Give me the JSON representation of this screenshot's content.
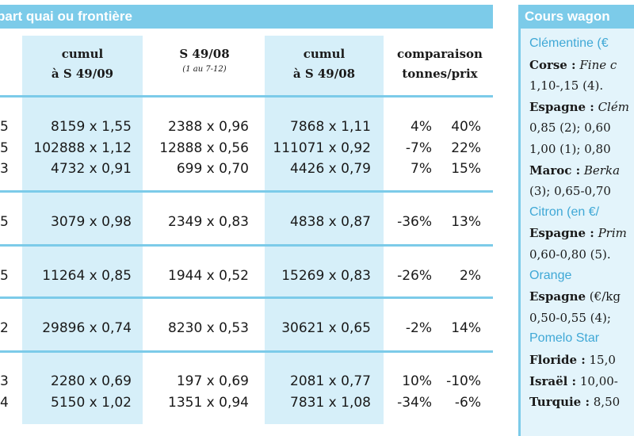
{
  "left_table": {
    "title": "part quai ou frontière",
    "columns": {
      "col1": {
        "line1": "cumul",
        "line2": "à S 49/09"
      },
      "col2": {
        "line1": "S 49/08",
        "sub": "(1 au 7-12)"
      },
      "col3": {
        "line1": "cumul",
        "line2": "à S 49/08"
      },
      "col4": {
        "line1": "comparaison",
        "line2": "tonnes/prix"
      }
    },
    "groups": [
      {
        "rows": [
          {
            "lead": "5",
            "c1": "8159 x 1,55",
            "c2": "2388 x 0,96",
            "c3": "7868 x 1,11",
            "t": "4%",
            "p": "40%"
          },
          {
            "lead": "5",
            "c1": "102888 x 1,12",
            "c2": "12888 x 0,56",
            "c3": "111071 x 0,92",
            "t": "-7%",
            "p": "22%"
          },
          {
            "lead": "3",
            "c1": "4732 x 0,91",
            "c2": "699 x 0,70",
            "c3": "4426 x 0,79",
            "t": "7%",
            "p": "15%"
          }
        ]
      },
      {
        "rows": [
          {
            "lead": "5",
            "c1": "3079 x 0,98",
            "c2": "2349 x 0,83",
            "c3": "4838 x 0,87",
            "t": "-36%",
            "p": "13%"
          }
        ]
      },
      {
        "rows": [
          {
            "lead": "5",
            "c1": "11264 x 0,85",
            "c2": "1944 x 0,52",
            "c3": "15269 x 0,83",
            "t": "-26%",
            "p": "2%"
          }
        ]
      },
      {
        "rows": [
          {
            "lead": "2",
            "c1": "29896 x 0,74",
            "c2": "8230 x 0,53",
            "c3": "30621 x 0,65",
            "t": "-2%",
            "p": "14%"
          }
        ]
      },
      {
        "rows": [
          {
            "lead": "3",
            "c1": "2280 x 0,69",
            "c2": "197 x 0,69",
            "c3": "2081 x 0,77",
            "t": "10%",
            "p": "-10%"
          },
          {
            "lead": "4",
            "c1": "5150 x 1,02",
            "c2": "1351 x 0,94",
            "c3": "7831 x 1,08",
            "t": "-34%",
            "p": "-6%"
          }
        ]
      }
    ]
  },
  "right_panel": {
    "title": "Cours wagon",
    "lines": [
      {
        "type": "section",
        "text": "Clémentine (€"
      },
      {
        "type": "entry",
        "bold": "Corse :",
        "italic": "Fine c",
        "rest": ""
      },
      {
        "type": "plain",
        "text": "1,10-,15 (4)."
      },
      {
        "type": "entry",
        "bold": "Espagne :",
        "italic": "Clém",
        "rest": ""
      },
      {
        "type": "plain",
        "text": "0,85 (2); 0,60"
      },
      {
        "type": "plain",
        "text": "1,00 (1); 0,80"
      },
      {
        "type": "entry",
        "bold": "Maroc :",
        "italic": "Berka",
        "rest": ""
      },
      {
        "type": "plain",
        "text": "(3); 0,65-0,70"
      },
      {
        "type": "section",
        "text": "Citron (en €/"
      },
      {
        "type": "entry",
        "bold": "Espagne :",
        "italic": "Prim",
        "rest": ""
      },
      {
        "type": "plain",
        "text": "0,60-0,80 (5)."
      },
      {
        "type": "section",
        "text": "Orange"
      },
      {
        "type": "entry",
        "bold": "Espagne",
        "italic": "",
        "rest": " (€/kg"
      },
      {
        "type": "plain",
        "text": "0,50-0,55 (4);"
      },
      {
        "type": "section",
        "text": "Pomelo Star"
      },
      {
        "type": "entry",
        "bold": "Floride :",
        "italic": "",
        "rest": " 15,0"
      },
      {
        "type": "entry",
        "bold": "Israël :",
        "italic": "",
        "rest": " 10,00-"
      },
      {
        "type": "entry",
        "bold": "Turquie :",
        "italic": "",
        "rest": " 8,50"
      }
    ]
  },
  "colors": {
    "accent": "#7ccbe9",
    "shade": "#d6eff9",
    "section_text": "#3fa8d6"
  }
}
